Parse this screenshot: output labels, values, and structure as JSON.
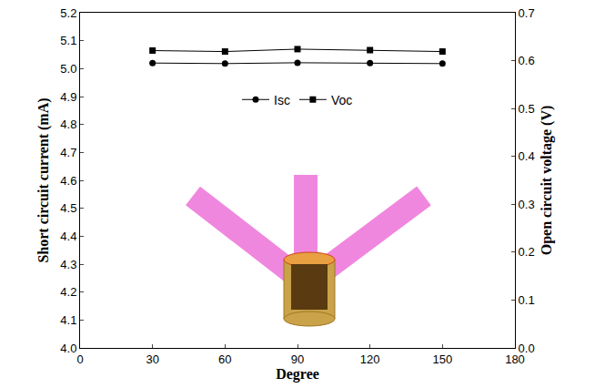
{
  "chart_data": {
    "type": "line",
    "x": [
      30,
      60,
      90,
      120,
      150
    ],
    "xlabel": "Degree",
    "ylabel": "Short circuit current (mA)",
    "y2label": "Open circuit voltage (V)",
    "xlim": [
      0,
      180
    ],
    "xticks": [
      0,
      30,
      60,
      90,
      120,
      150,
      180
    ],
    "ylim": [
      4.0,
      5.2
    ],
    "yticks": [
      {
        "value": 4.0,
        "label": "4.0"
      },
      4.1,
      4.2,
      4.3,
      4.4,
      4.5,
      4.6,
      4.7,
      4.8,
      4.9,
      {
        "value": 5.0,
        "label": "5.0"
      },
      5.1,
      5.2
    ],
    "y2lim": [
      0.0,
      0.7
    ],
    "y2ticks": [
      {
        "value": 0.0,
        "label": "0.0"
      },
      0.1,
      0.2,
      0.3,
      0.4,
      0.5,
      0.6,
      0.7
    ],
    "series": [
      {
        "name": "Isc",
        "color": "#000000",
        "marker": "circle",
        "values": [
          5.02,
          5.018,
          5.021,
          5.02,
          5.018
        ]
      },
      {
        "name": "Voc",
        "color": "#000000",
        "marker": "square",
        "axis": "y2",
        "values": [
          0.621,
          0.619,
          0.624,
          0.622,
          0.619
        ]
      }
    ],
    "legend": "top",
    "grid": false
  }
}
